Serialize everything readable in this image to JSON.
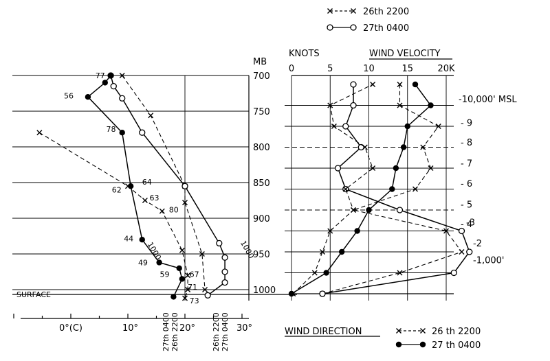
{
  "chart_data": [
    {
      "type": "line",
      "panel": "temperature",
      "y_title": "MB",
      "y_ticks": [
        "700",
        "750",
        "800",
        "850",
        "900",
        "950",
        "1000"
      ],
      "surface_label": "SURFACE",
      "x_ticks": [
        "0°(C)",
        "10°",
        "20°",
        "30°"
      ],
      "xlim": [
        -10,
        30
      ],
      "series": [
        {
          "name": "26th 2200",
          "style": "dashed-x",
          "points": [
            {
              "p": 700,
              "t": 9,
              "marker": "x"
            },
            {
              "p": 756,
              "t": 14,
              "marker": "x"
            },
            {
              "p": 855,
              "t": 20,
              "marker": "x"
            },
            {
              "p": 878,
              "t": 20,
              "marker": "x"
            },
            {
              "p": 950,
              "t": 23,
              "marker": "x"
            },
            {
              "p": 1000,
              "t": 23.5,
              "marker": "x"
            }
          ]
        },
        {
          "name": "27th 0400",
          "style": "solid-o",
          "points": [
            {
              "p": 700,
              "t": 7,
              "marker": "o"
            },
            {
              "p": 715,
              "t": 7.5,
              "marker": "o"
            },
            {
              "p": 732,
              "t": 9,
              "marker": "o"
            },
            {
              "p": 780,
              "t": 12.5,
              "marker": "o"
            },
            {
              "p": 855,
              "t": 20,
              "marker": "o"
            },
            {
              "p": 935,
              "t": 26,
              "marker": "o"
            },
            {
              "p": 955,
              "t": 27,
              "marker": "o"
            },
            {
              "p": 975,
              "t": 27,
              "marker": "o"
            },
            {
              "p": 990,
              "t": 27,
              "marker": "o"
            },
            {
              "p": 1008,
              "t": 24,
              "marker": "o"
            }
          ]
        },
        {
          "name": "26th 2200 dew point",
          "style": "dashed-x",
          "points": [
            {
              "p": 780,
              "t": -5.5,
              "marker": "x"
            },
            {
              "p": 855,
              "t": 10,
              "marker": "x"
            },
            {
              "p": 875,
              "t": 13,
              "marker": "x"
            },
            {
              "p": 890,
              "t": 16,
              "marker": "x"
            },
            {
              "p": 945,
              "t": 19.5,
              "marker": "x"
            },
            {
              "p": 980,
              "t": 20.5,
              "marker": "x"
            },
            {
              "p": 1000,
              "t": 20.5,
              "marker": "x"
            },
            {
              "p": 1012,
              "t": 20,
              "marker": "x"
            }
          ]
        },
        {
          "name": "27th 0400 dew point",
          "style": "solid-dot",
          "points": [
            {
              "p": 700,
              "t": 7,
              "marker": "dot"
            },
            {
              "p": 710,
              "t": 6,
              "marker": "dot"
            },
            {
              "p": 730,
              "t": 3,
              "marker": "dot"
            },
            {
              "p": 780,
              "t": 9,
              "marker": "dot"
            },
            {
              "p": 855,
              "t": 10.5,
              "marker": "dot"
            },
            {
              "p": 930,
              "t": 12.5,
              "marker": "dot"
            },
            {
              "p": 962,
              "t": 15.5,
              "marker": "dot"
            },
            {
              "p": 970,
              "t": 19,
              "marker": "dot"
            },
            {
              "p": 985,
              "t": 19.5,
              "marker": "dot"
            },
            {
              "p": 1010,
              "t": 18,
              "marker": "dot"
            }
          ]
        }
      ],
      "annotations": [
        {
          "text": "77",
          "p": 704,
          "t": 4.3
        },
        {
          "text": "56",
          "p": 732,
          "t": -1.2
        },
        {
          "text": "78",
          "p": 779,
          "t": 6.2
        },
        {
          "text": "64",
          "p": 853,
          "t": 12.5
        },
        {
          "text": "62",
          "p": 864,
          "t": 7.2
        },
        {
          "text": "63",
          "p": 875,
          "t": 13.8
        },
        {
          "text": "80",
          "p": 892,
          "t": 17.2
        },
        {
          "text": "1000",
          "p": 936,
          "t": 13.4,
          "rotate": 60
        },
        {
          "text": "44",
          "p": 932,
          "t": 9.3
        },
        {
          "text": "1000",
          "p": 934,
          "t": 29.7,
          "rotate": 60
        },
        {
          "text": "49",
          "p": 966,
          "t": 11.8
        },
        {
          "text": "59",
          "p": 982,
          "t": 15.6
        },
        {
          "text": "67",
          "p": 982,
          "t": 20.8
        },
        {
          "text": "71",
          "p": 1000,
          "t": 20.5
        },
        {
          "text": "73",
          "p": 1019,
          "t": 20.8
        }
      ],
      "vertical_labels": [
        "27th 0400",
        "26th 2200",
        "26th 2200",
        "27th 0400"
      ]
    },
    {
      "type": "line",
      "panel": "wind velocity",
      "x_title": "KNOTS",
      "title": "WIND VELOCITY",
      "x_ticks": [
        "0",
        "5",
        "10",
        "15",
        "20K"
      ],
      "xlim": [
        0,
        20
      ],
      "height_labels": [
        "-10,000' MSL",
        "- 9",
        "- 8",
        "- 7",
        "- 6",
        "- 5",
        "- 4",
        "-3",
        "-2",
        "-1,000'"
      ],
      "series": [
        {
          "name": "26th 2200",
          "style": "dashed-x",
          "points": [
            {
              "h": 0,
              "v": 4,
              "marker": "x"
            },
            {
              "h": 1,
              "v": 14,
              "marker": "x"
            },
            {
              "h": 2,
              "v": 22,
              "marker": "x"
            },
            {
              "h": 3,
              "v": 20,
              "marker": "x"
            },
            {
              "h": 4,
              "v": 8,
              "marker": "x"
            },
            {
              "h": 5,
              "v": 16,
              "marker": "x"
            },
            {
              "h": 6,
              "v": 18,
              "marker": "x"
            },
            {
              "h": 7,
              "v": 17,
              "marker": "x"
            },
            {
              "h": 8,
              "v": 19,
              "marker": "x"
            },
            {
              "h": 9,
              "v": 14,
              "marker": "x"
            },
            {
              "h": 10,
              "v": 14,
              "marker": "x"
            }
          ]
        },
        {
          "name": "27th 0400",
          "style": "solid-o",
          "points": [
            {
              "h": 0,
              "v": 4,
              "marker": "o"
            },
            {
              "h": 1,
              "v": 21,
              "marker": "o"
            },
            {
              "h": 2,
              "v": 23,
              "marker": "o"
            },
            {
              "h": 3,
              "v": 22,
              "marker": "o"
            },
            {
              "h": 4,
              "v": 14,
              "marker": "o"
            },
            {
              "h": 5,
              "v": 7,
              "marker": "o"
            },
            {
              "h": 6,
              "v": 6,
              "marker": "o"
            },
            {
              "h": 7,
              "v": 9,
              "marker": "o"
            },
            {
              "h": 8,
              "v": 7,
              "marker": "o"
            },
            {
              "h": 9,
              "v": 8,
              "marker": "o"
            },
            {
              "h": 10,
              "v": 8,
              "marker": "o"
            }
          ]
        }
      ]
    },
    {
      "type": "line",
      "panel": "wind direction",
      "title": "WIND DIRECTION",
      "series": [
        {
          "name": "26 th 2200",
          "style": "dashed-x",
          "points": [
            {
              "h": 0,
              "v": 0.2
            },
            {
              "h": 1,
              "v": 3
            },
            {
              "h": 2,
              "v": 4
            },
            {
              "h": 3,
              "v": 5
            },
            {
              "h": 4,
              "v": 8
            },
            {
              "h": 5,
              "v": 7
            },
            {
              "h": 6,
              "v": 10.5
            },
            {
              "h": 7,
              "v": 9.5
            },
            {
              "h": 8,
              "v": 5.5
            },
            {
              "h": 9,
              "v": 5
            },
            {
              "h": 10,
              "v": 10.5
            }
          ]
        },
        {
          "name": "27 th 0400",
          "style": "solid-dot",
          "points": [
            {
              "h": 0,
              "v": 0
            },
            {
              "h": 1,
              "v": 4.5
            },
            {
              "h": 2,
              "v": 6.5
            },
            {
              "h": 3,
              "v": 8.5
            },
            {
              "h": 4,
              "v": 10
            },
            {
              "h": 5,
              "v": 13
            },
            {
              "h": 6,
              "v": 13.5
            },
            {
              "h": 7,
              "v": 14.5
            },
            {
              "h": 8,
              "v": 15
            },
            {
              "h": 9,
              "v": 18
            },
            {
              "h": 10,
              "v": 16
            }
          ]
        }
      ]
    }
  ],
  "legend_top": [
    {
      "name": "26th 2200",
      "style": "dashed-x"
    },
    {
      "name": "27th 0400",
      "style": "solid-o"
    }
  ],
  "legend_bottom": [
    {
      "name": "26 th 2200",
      "style": "dashed-x"
    },
    {
      "name": "27 th 0400",
      "style": "solid-dot"
    }
  ]
}
